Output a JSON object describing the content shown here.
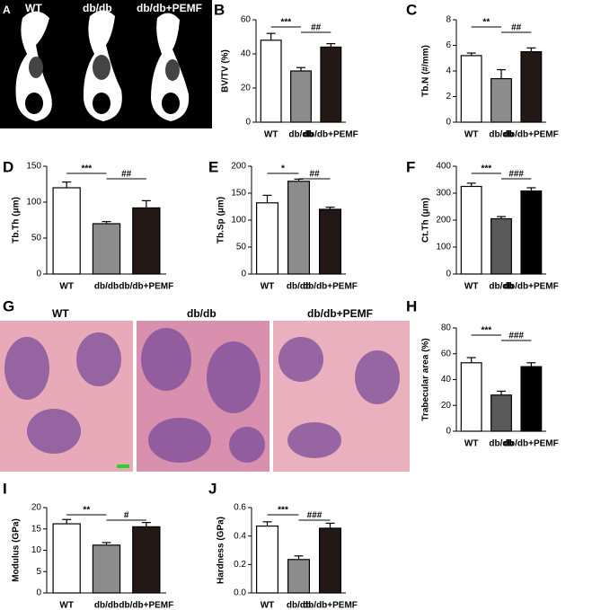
{
  "images": [
    {
      "panel": "A",
      "labels": [
        "WT",
        "db/db",
        "db/db+PEMF"
      ]
    },
    {
      "panel": "G",
      "labels": [
        "WT",
        "db/db",
        "db/db+PEMF"
      ]
    }
  ],
  "chart_data": [
    {
      "type": "bar",
      "panel": "B",
      "ylabel": "BV/TV (%)",
      "categories": [
        "WT",
        "db/db",
        "db/db+PEMF"
      ],
      "values": [
        48,
        30,
        44
      ],
      "errors": [
        4,
        2,
        2
      ],
      "colors": [
        "#ffffff",
        "#8c8c8c",
        "#231815"
      ],
      "ylim": [
        0,
        60
      ],
      "yticks": [
        0,
        20,
        40,
        60
      ],
      "significance": [
        "***",
        "##"
      ]
    },
    {
      "type": "bar",
      "panel": "C",
      "ylabel": "Tb.N (#/mm)",
      "categories": [
        "WT",
        "db/db",
        "db/db+PEMF"
      ],
      "values": [
        5.2,
        3.4,
        5.5
      ],
      "errors": [
        0.2,
        0.7,
        0.3
      ],
      "colors": [
        "#ffffff",
        "#8c8c8c",
        "#231815"
      ],
      "ylim": [
        0,
        8
      ],
      "yticks": [
        0,
        2,
        4,
        6,
        8
      ],
      "significance": [
        "**",
        "##"
      ]
    },
    {
      "type": "bar",
      "panel": "D",
      "ylabel": "Tb.Th (μm)",
      "categories": [
        "WT",
        "db/db",
        "db/db+PEMF"
      ],
      "values": [
        120,
        70,
        92
      ],
      "errors": [
        8,
        3,
        10
      ],
      "colors": [
        "#ffffff",
        "#8c8c8c",
        "#231815"
      ],
      "ylim": [
        0,
        150
      ],
      "yticks": [
        0,
        50,
        100,
        150
      ],
      "significance": [
        "***",
        "##"
      ]
    },
    {
      "type": "bar",
      "panel": "E",
      "ylabel": "Tb.Sp (μm)",
      "categories": [
        "WT",
        "db/db",
        "db/db+PEMF"
      ],
      "values": [
        132,
        172,
        120
      ],
      "errors": [
        14,
        4,
        4
      ],
      "colors": [
        "#ffffff",
        "#8c8c8c",
        "#231815"
      ],
      "ylim": [
        0,
        200
      ],
      "yticks": [
        0,
        50,
        100,
        150,
        200
      ],
      "significance": [
        "*",
        "##"
      ]
    },
    {
      "type": "bar",
      "panel": "F",
      "ylabel": "Ct.Th (μm)",
      "categories": [
        "WT",
        "db/db",
        "db/db+PEMF"
      ],
      "values": [
        325,
        205,
        308
      ],
      "errors": [
        12,
        8,
        12
      ],
      "colors": [
        "#ffffff",
        "#5a5a5a",
        "#000000"
      ],
      "ylim": [
        0,
        400
      ],
      "yticks": [
        0,
        100,
        200,
        300,
        400
      ],
      "significance": [
        "***",
        "###"
      ]
    },
    {
      "type": "bar",
      "panel": "H",
      "ylabel": "Trabecular area (%)",
      "categories": [
        "WT",
        "db/db",
        "db/db+PEMF"
      ],
      "values": [
        53,
        28,
        50
      ],
      "errors": [
        4,
        3,
        3
      ],
      "colors": [
        "#ffffff",
        "#5a5a5a",
        "#000000"
      ],
      "ylim": [
        0,
        80
      ],
      "yticks": [
        0,
        20,
        40,
        60,
        80
      ],
      "significance": [
        "***",
        "###"
      ]
    },
    {
      "type": "bar",
      "panel": "I",
      "ylabel": "Modulus (GPa)",
      "categories": [
        "WT",
        "db/db",
        "db/db+PEMF"
      ],
      "values": [
        16.2,
        11.2,
        15.5
      ],
      "errors": [
        1,
        0.6,
        1
      ],
      "colors": [
        "#ffffff",
        "#8c8c8c",
        "#231815"
      ],
      "ylim": [
        0,
        20
      ],
      "yticks": [
        0,
        5,
        10,
        15,
        20
      ],
      "significance": [
        "**",
        "#"
      ]
    },
    {
      "type": "bar",
      "panel": "J",
      "ylabel": "Hardness (GPa)",
      "categories": [
        "WT",
        "db/db",
        "db/db+PEMF"
      ],
      "values": [
        0.47,
        0.235,
        0.455
      ],
      "errors": [
        0.03,
        0.025,
        0.035
      ],
      "colors": [
        "#ffffff",
        "#8c8c8c",
        "#231815"
      ],
      "ylim": [
        0,
        0.6
      ],
      "yticks": [
        {
          "value": 0,
          "label": "0.0"
        },
        0.2,
        0.4,
        0.6
      ],
      "significance": [
        "***",
        "###"
      ]
    }
  ]
}
